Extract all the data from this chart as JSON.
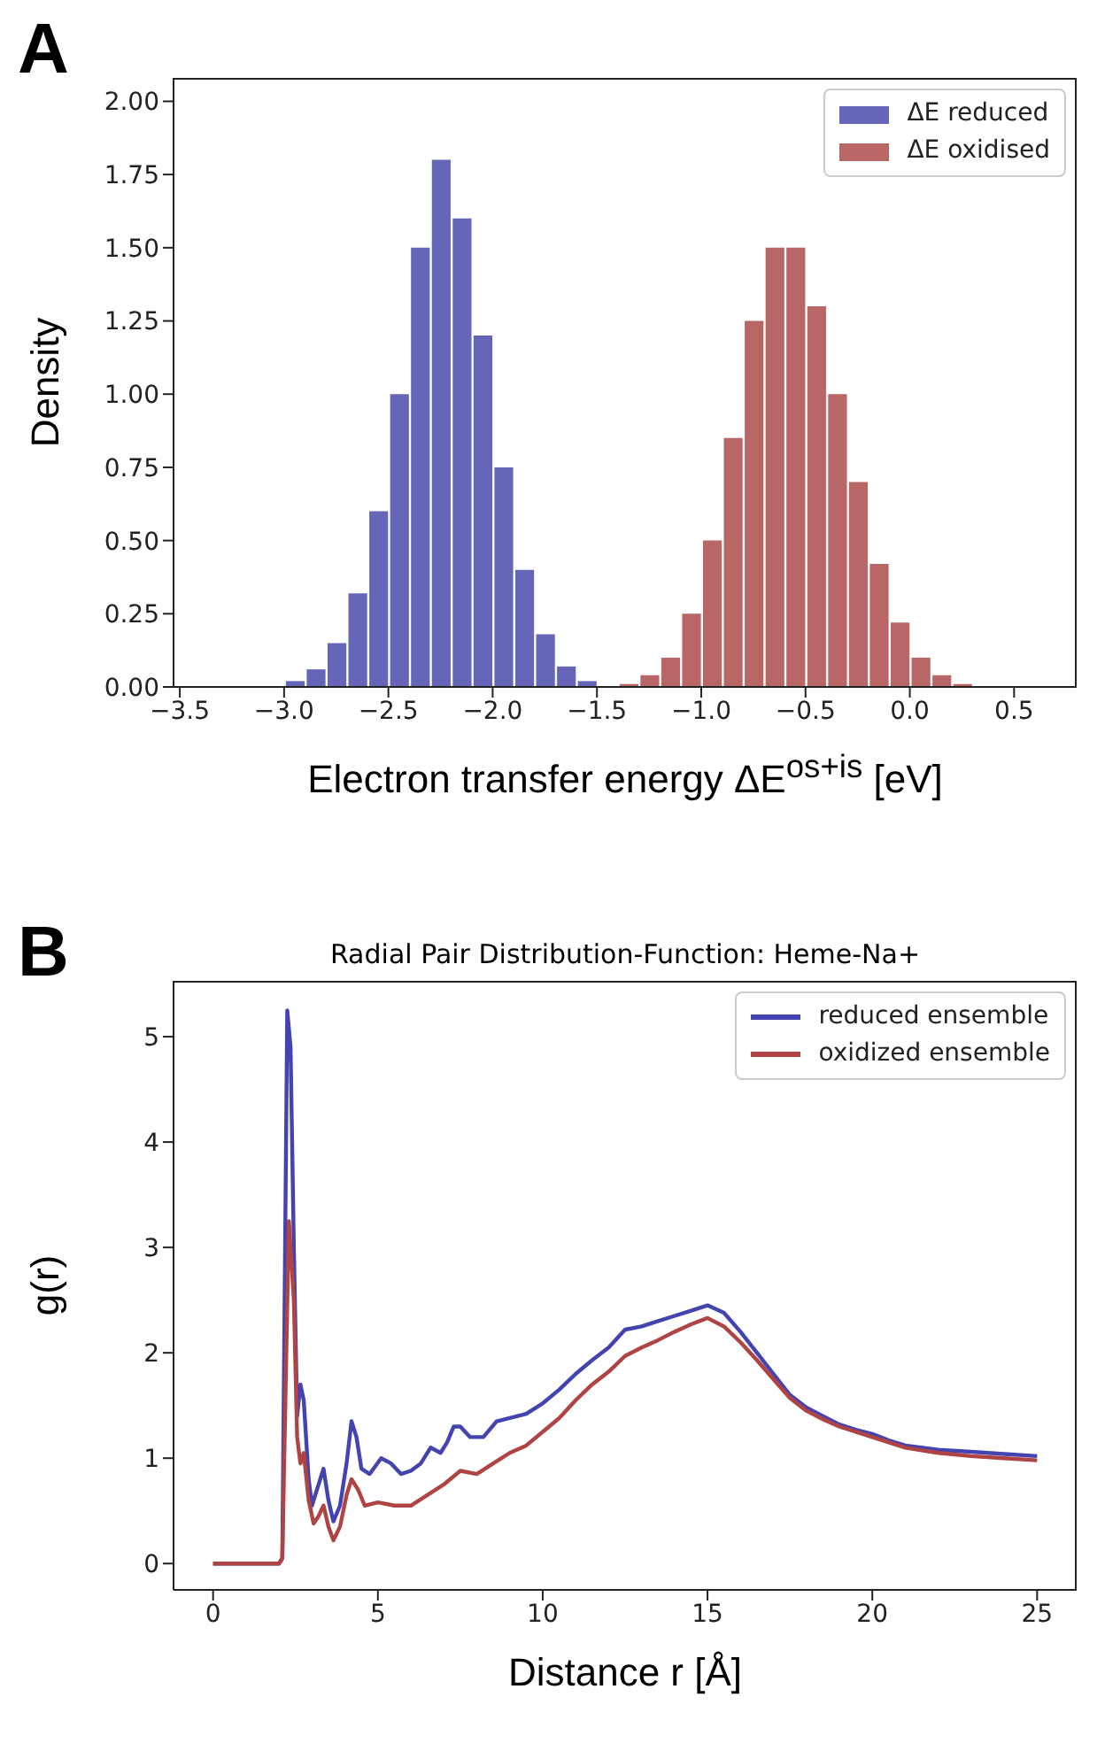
{
  "chart_data": [
    {
      "type": "histogram",
      "annotations": [
        "A"
      ],
      "xlabel": "Electron transfer energy ΔE$^{os+is}$ [eV]",
      "ylabel": "Density",
      "bins": [
        -3.1,
        -3.0,
        -2.9,
        -2.8,
        -2.7,
        -2.6,
        -2.5,
        -2.4,
        -2.3,
        -2.2,
        -2.1,
        -2.0,
        -1.9,
        -1.8,
        -1.7,
        -1.6,
        -1.5,
        -1.4,
        -1.3,
        -1.2,
        -1.1,
        -1.0,
        -0.9,
        -0.8,
        -0.7,
        -0.6,
        -0.5,
        -0.4,
        -0.3,
        -0.2,
        -0.1,
        0.0,
        0.1,
        0.2,
        0.3,
        0.4
      ],
      "series": [
        {
          "name": "ΔE reduced",
          "color": "#6666b8",
          "values": [
            0,
            0.02,
            0.06,
            0.15,
            0.32,
            0.6,
            1.0,
            1.5,
            1.8,
            1.6,
            1.2,
            0.75,
            0.4,
            0.18,
            0.07,
            0.02,
            0,
            0,
            0,
            0,
            0,
            0,
            0,
            0,
            0,
            0,
            0,
            0,
            0,
            0,
            0,
            0,
            0,
            0,
            0
          ]
        },
        {
          "name": "ΔE oxidised",
          "color": "#b86666",
          "values": [
            0,
            0,
            0,
            0,
            0,
            0,
            0,
            0,
            0,
            0,
            0,
            0,
            0,
            0,
            0,
            0,
            0,
            0.01,
            0.04,
            0.1,
            0.25,
            0.5,
            0.85,
            1.25,
            1.5,
            1.5,
            1.3,
            1.0,
            0.7,
            0.42,
            0.22,
            0.1,
            0.04,
            0.01,
            0
          ]
        }
      ],
      "xlim": [
        -3.53,
        0.8
      ],
      "xticks": [
        {
          "value": -3.5,
          "label": "−3.5"
        },
        {
          "value": -3.0,
          "label": "−3.0"
        },
        {
          "value": -2.5,
          "label": "−2.5"
        },
        {
          "value": -2.0,
          "label": "−2.0"
        },
        {
          "value": -1.5,
          "label": "−1.5"
        },
        {
          "value": -1.0,
          "label": "−1.0"
        },
        {
          "value": -0.5,
          "label": "−0.5"
        },
        {
          "value": 0,
          "label": "0.0"
        },
        {
          "value": 0.5,
          "label": "0.5"
        }
      ],
      "ylim": [
        0,
        2.08
      ],
      "yticks": [
        {
          "value": 0,
          "label": "0.00"
        },
        {
          "value": 0.25,
          "label": "0.25"
        },
        {
          "value": 0.5,
          "label": "0.50"
        },
        {
          "value": 0.75,
          "label": "0.75"
        },
        {
          "value": 1,
          "label": "1.00"
        },
        {
          "value": 1.25,
          "label": "1.25"
        },
        {
          "value": 1.5,
          "label": "1.50"
        },
        {
          "value": 1.75,
          "label": "1.75"
        },
        {
          "value": 2,
          "label": "2.00"
        }
      ],
      "legend": "top right",
      "grid": false
    },
    {
      "type": "line",
      "annotations": [
        "B"
      ],
      "title": "Radial Pair Distribution-Function: Heme-Na+",
      "xlabel": "Distance r [Å]",
      "ylabel": "g(r)",
      "series": [
        {
          "name": "reduced ensemble",
          "color": "#4444b0",
          "x": [
            0,
            2.0,
            2.1,
            2.25,
            2.35,
            2.45,
            2.55,
            2.65,
            2.75,
            2.9,
            3.0,
            3.15,
            3.35,
            3.5,
            3.65,
            3.85,
            4.05,
            4.2,
            4.35,
            4.5,
            4.75,
            5.1,
            5.4,
            5.7,
            6.0,
            6.3,
            6.6,
            6.9,
            7.1,
            7.3,
            7.5,
            7.8,
            8.2,
            8.6,
            9.0,
            9.5,
            10,
            10.5,
            11,
            11.5,
            12,
            12.5,
            13,
            13.5,
            14,
            14.5,
            15,
            15.5,
            16,
            16.5,
            17,
            17.5,
            18,
            18.5,
            19,
            19.5,
            20,
            20.5,
            21,
            22,
            23,
            24,
            25
          ],
          "values": [
            0,
            0,
            0.05,
            5.25,
            4.9,
            3.0,
            1.4,
            1.7,
            1.55,
            0.8,
            0.55,
            0.7,
            0.9,
            0.6,
            0.4,
            0.55,
            0.95,
            1.35,
            1.2,
            0.9,
            0.85,
            1.0,
            0.95,
            0.85,
            0.88,
            0.95,
            1.1,
            1.05,
            1.15,
            1.3,
            1.3,
            1.2,
            1.2,
            1.35,
            1.38,
            1.42,
            1.52,
            1.65,
            1.8,
            1.93,
            2.05,
            2.22,
            2.25,
            2.3,
            2.35,
            2.4,
            2.45,
            2.38,
            2.2,
            2.0,
            1.8,
            1.6,
            1.48,
            1.4,
            1.32,
            1.27,
            1.23,
            1.17,
            1.12,
            1.08,
            1.06,
            1.04,
            1.02
          ]
        },
        {
          "name": "oxidized ensemble",
          "color": "#b04444",
          "x": [
            0,
            2.0,
            2.1,
            2.3,
            2.45,
            2.55,
            2.65,
            2.75,
            2.9,
            3.05,
            3.2,
            3.35,
            3.5,
            3.65,
            3.85,
            4.05,
            4.2,
            4.4,
            4.6,
            5.0,
            5.5,
            6.0,
            6.5,
            7.0,
            7.5,
            8.0,
            8.5,
            9.0,
            9.5,
            10,
            10.5,
            11,
            11.5,
            12,
            12.5,
            13,
            13.5,
            14,
            14.5,
            15,
            15.5,
            16,
            16.5,
            17,
            17.5,
            18,
            18.5,
            19,
            19.5,
            20,
            20.5,
            21,
            22,
            23,
            24,
            25
          ],
          "values": [
            0,
            0,
            0.05,
            3.25,
            2.5,
            1.2,
            0.95,
            1.05,
            0.6,
            0.38,
            0.45,
            0.55,
            0.35,
            0.22,
            0.35,
            0.65,
            0.8,
            0.7,
            0.55,
            0.58,
            0.55,
            0.55,
            0.65,
            0.75,
            0.88,
            0.85,
            0.95,
            1.05,
            1.12,
            1.25,
            1.38,
            1.55,
            1.7,
            1.82,
            1.97,
            2.05,
            2.12,
            2.2,
            2.27,
            2.33,
            2.25,
            2.1,
            1.93,
            1.75,
            1.57,
            1.45,
            1.37,
            1.3,
            1.25,
            1.2,
            1.15,
            1.1,
            1.05,
            1.02,
            1.0,
            0.98
          ]
        }
      ],
      "xlim": [
        -1.2,
        26.2
      ],
      "xticks": [
        0,
        5,
        10,
        15,
        20,
        25
      ],
      "ylim": [
        -0.25,
        5.53
      ],
      "yticks": [
        0,
        1,
        2,
        3,
        4,
        5
      ],
      "legend": "top right",
      "grid": false,
      "line_style": "solid",
      "marker": "none"
    }
  ]
}
